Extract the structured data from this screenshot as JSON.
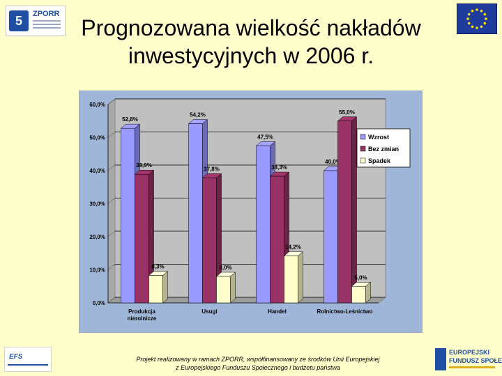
{
  "title_line1": "Prognozowana wielkość nakładów",
  "title_line2": "inwestycyjnych w 2006 r.",
  "logos": {
    "zporr_text": "ZPORR",
    "efs_text": "EFS",
    "right_line1": "EUROPEJSKI",
    "right_line2": "FUNDUSZ SPOŁECZNY"
  },
  "footer_line1": "Projekt realizowany w ramach ZPORR, współfinansowany ze środków Unii Europejskiej",
  "footer_line2": "z Europejskiego Funduszu Społecznego i budżetu państwa",
  "chart_data": {
    "type": "bar",
    "categories": [
      "Produkcja nierolnicze",
      "Usugi",
      "Handel",
      "Rolnictwo-Leśnictwo"
    ],
    "category_lines": [
      [
        "Produkcja",
        "nierolnicze"
      ],
      [
        "Usugi"
      ],
      [
        "Handel"
      ],
      [
        "Rolnictwo-Leśnictwo"
      ]
    ],
    "series": [
      {
        "name": "Wzrost",
        "values": [
          52.8,
          54.2,
          47.5,
          40.0
        ],
        "labels": [
          "52,8%",
          "54,2%",
          "47,5%",
          "40,0%"
        ],
        "color": "#9999ff"
      },
      {
        "name": "Bez zmian",
        "values": [
          38.9,
          37.8,
          38.3,
          55.0
        ],
        "labels": [
          "38,9%",
          "37,8%",
          "38,3%",
          "55,0%"
        ],
        "color": "#993366"
      },
      {
        "name": "Spadek",
        "values": [
          8.3,
          8.0,
          14.2,
          5.0
        ],
        "labels": [
          "8,3%",
          "8,0%",
          "14,2%",
          "5,0%"
        ],
        "color": "#ffffcc"
      }
    ],
    "y_ticks": [
      "0,0%",
      "10,0%",
      "20,0%",
      "30,0%",
      "40,0%",
      "50,0%",
      "60,0%"
    ],
    "ylim": [
      0,
      60
    ],
    "grid": true,
    "legend_position": "right",
    "colors": {
      "background": "#9fb6d9",
      "plot_wall": "#c0c0c0",
      "page": "#ffffcc"
    }
  }
}
